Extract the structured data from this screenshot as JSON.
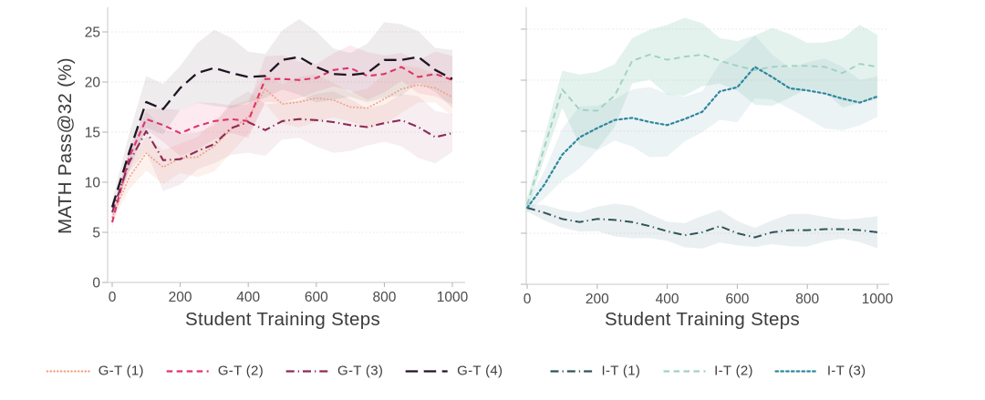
{
  "figure": {
    "background": "#ffffff"
  },
  "chart_data": [
    {
      "type": "line",
      "title": "",
      "xlabel": "Student Training Steps",
      "ylabel": "MATH Pass@32 (%)",
      "xlim": [
        0,
        1000
      ],
      "ylim": [
        0,
        27
      ],
      "xticks": [
        0,
        200,
        400,
        600,
        800,
        1000
      ],
      "yticks": [
        0,
        5,
        10,
        15,
        20,
        25
      ],
      "show_ytick_labels": true,
      "grid": "horizontal-dotted",
      "legend_position": "bottom",
      "x": [
        0,
        50,
        100,
        150,
        200,
        250,
        300,
        350,
        400,
        450,
        500,
        550,
        600,
        650,
        700,
        750,
        800,
        850,
        900,
        950,
        1000
      ],
      "series": [
        {
          "name": "G-T (1)",
          "color": "#f2a183",
          "band_color": "#f2a183",
          "band_opacity": 0.15,
          "band": 2.0,
          "dash": "dotted",
          "width": 1.7,
          "values": [
            6.5,
            10.5,
            12.9,
            11.5,
            12.4,
            12.5,
            13.6,
            15.3,
            16.5,
            19.3,
            17.8,
            18.0,
            18.4,
            18.2,
            17.5,
            17.4,
            18.3,
            19.3,
            19.7,
            19.4,
            18.5
          ]
        },
        {
          "name": "G-T (2)",
          "color": "#e0336c",
          "band_color": "#e0336c",
          "band_opacity": 0.1,
          "band": 1.9,
          "dash": "dashed",
          "width": 2.1,
          "values": [
            6.0,
            12.5,
            16.3,
            15.7,
            14.9,
            15.6,
            16.1,
            16.3,
            16.1,
            20.3,
            20.3,
            20.2,
            20.4,
            21.2,
            21.4,
            20.6,
            20.8,
            21.5,
            20.5,
            20.8,
            20.2
          ]
        },
        {
          "name": "G-T (3)",
          "color": "#8c2a56",
          "band_color": "#a85677",
          "band_opacity": 0.1,
          "band": 2.4,
          "dash": "dashdot",
          "width": 2.1,
          "values": [
            7.0,
            12.0,
            15.1,
            12.2,
            12.3,
            13.1,
            13.8,
            15.4,
            16.0,
            15.2,
            16.1,
            16.3,
            16.2,
            16.0,
            15.7,
            15.5,
            15.9,
            16.2,
            15.5,
            14.5,
            14.9
          ]
        },
        {
          "name": "G-T (4)",
          "color": "#201423",
          "band_color": "#8d8089",
          "band_opacity": 0.15,
          "band": 3.0,
          "dash": "longdash",
          "width": 2.3,
          "values": [
            7.5,
            13.0,
            18.0,
            17.3,
            19.4,
            20.9,
            21.4,
            20.9,
            20.5,
            20.6,
            22.2,
            22.5,
            21.5,
            20.8,
            20.7,
            20.9,
            22.2,
            22.2,
            22.5,
            21.2,
            20.3
          ]
        }
      ]
    },
    {
      "type": "line",
      "title": "",
      "xlabel": "Student Training Steps",
      "ylabel": "",
      "xlim": [
        0,
        1000
      ],
      "ylim": [
        0,
        27
      ],
      "xticks": [
        0,
        200,
        400,
        600,
        800,
        1000
      ],
      "yticks": [
        0,
        5,
        10,
        15,
        20,
        25
      ],
      "show_ytick_labels": false,
      "grid": "horizontal-dotted",
      "legend_position": "bottom",
      "x": [
        0,
        50,
        100,
        150,
        200,
        250,
        300,
        350,
        400,
        450,
        500,
        550,
        600,
        650,
        700,
        750,
        800,
        850,
        900,
        950,
        1000
      ],
      "series": [
        {
          "name": "I-T (1)",
          "color": "#2f545b",
          "band_color": "#7da3a8",
          "band_opacity": 0.16,
          "band": 1.3,
          "dash": "dashdot",
          "width": 2.0,
          "values": [
            7.5,
            7.0,
            6.4,
            6.1,
            6.4,
            6.3,
            6.1,
            5.7,
            5.2,
            4.8,
            5.1,
            5.7,
            5.0,
            4.6,
            5.1,
            5.3,
            5.3,
            5.4,
            5.4,
            5.3,
            5.1
          ]
        },
        {
          "name": "I-T (2)",
          "color": "#9fd2c0",
          "band_color": "#9fd2c0",
          "band_opacity": 0.28,
          "band": 3.0,
          "dash": "dashed",
          "width": 1.9,
          "values": [
            7.8,
            13.5,
            19.1,
            17.1,
            17.0,
            18.5,
            21.9,
            22.5,
            22.0,
            22.3,
            22.5,
            21.9,
            21.4,
            21.0,
            21.3,
            21.4,
            21.4,
            21.3,
            20.7,
            21.6,
            21.3
          ]
        },
        {
          "name": "I-T (3)",
          "color": "#2e879e",
          "band_color": "#86b7bf",
          "band_opacity": 0.16,
          "band": 2.7,
          "dash": "densedot",
          "width": 2.2,
          "values": [
            7.5,
            9.8,
            12.7,
            14.4,
            15.3,
            16.1,
            16.3,
            15.9,
            15.6,
            16.2,
            16.9,
            18.9,
            19.3,
            21.3,
            20.3,
            19.2,
            19.0,
            18.7,
            18.2,
            17.8,
            18.4
          ]
        }
      ]
    }
  ]
}
